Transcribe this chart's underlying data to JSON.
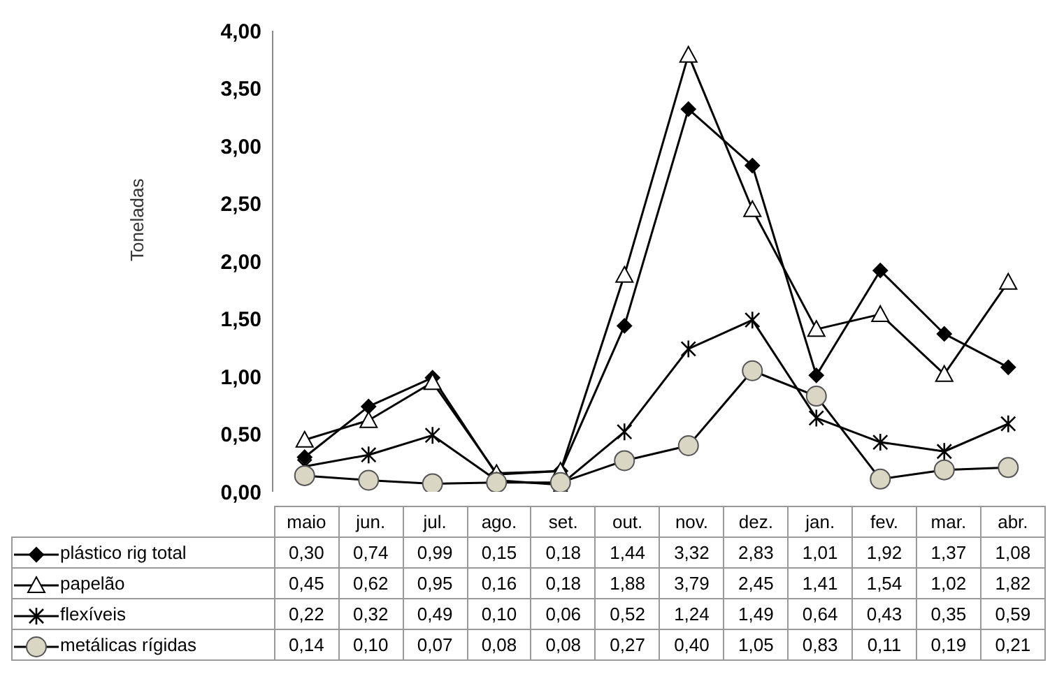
{
  "chart_data": {
    "type": "line",
    "ylabel": "Toneladas",
    "categories": [
      "maio",
      "jun.",
      "jul.",
      "ago.",
      "set.",
      "out.",
      "nov.",
      "dez.",
      "jan.",
      "fev.",
      "mar.",
      "abr."
    ],
    "series": [
      {
        "name": "plástico rig total",
        "color": "#000000",
        "marker": "diamond",
        "values": [
          0.3,
          0.74,
          0.99,
          0.15,
          0.18,
          1.44,
          3.32,
          2.83,
          1.01,
          1.92,
          1.37,
          1.08
        ],
        "value_labels": [
          "0,30",
          "0,74",
          "0,99",
          "0,15",
          "0,18",
          "1,44",
          "3,32",
          "2,83",
          "1,01",
          "1,92",
          "1,37",
          "1,08"
        ]
      },
      {
        "name": "papelão",
        "color": "#000000",
        "marker": "triangle",
        "values": [
          0.45,
          0.62,
          0.95,
          0.16,
          0.18,
          1.88,
          3.79,
          2.45,
          1.41,
          1.54,
          1.02,
          1.82
        ],
        "value_labels": [
          "0,45",
          "0,62",
          "0,95",
          "0,16",
          "0,18",
          "1,88",
          "3,79",
          "2,45",
          "1,41",
          "1,54",
          "1,02",
          "1,82"
        ]
      },
      {
        "name": "flexíveis",
        "color": "#000000",
        "marker": "cross",
        "values": [
          0.22,
          0.32,
          0.49,
          0.1,
          0.06,
          0.52,
          1.24,
          1.49,
          0.64,
          0.43,
          0.35,
          0.59
        ],
        "value_labels": [
          "0,22",
          "0,32",
          "0,49",
          "0,10",
          "0,06",
          "0,52",
          "1,24",
          "1,49",
          "0,64",
          "0,43",
          "0,35",
          "0,59"
        ]
      },
      {
        "name": "metálicas rígidas",
        "color": "#000000",
        "marker": "circle",
        "values": [
          0.14,
          0.1,
          0.07,
          0.08,
          0.08,
          0.27,
          0.4,
          1.05,
          0.83,
          0.11,
          0.19,
          0.21
        ],
        "value_labels": [
          "0,14",
          "0,10",
          "0,07",
          "0,08",
          "0,08",
          "0,27",
          "0,40",
          "1,05",
          "0,83",
          "0,11",
          "0,19",
          "0,21"
        ]
      }
    ],
    "ylim": [
      0,
      4
    ],
    "yticks": [
      {
        "value": 0,
        "label": "0,00"
      },
      {
        "value": 0.5,
        "label": "0,50"
      },
      {
        "value": 1,
        "label": "1,00"
      },
      {
        "value": 1.5,
        "label": "1,50"
      },
      {
        "value": 2,
        "label": "2,00"
      },
      {
        "value": 2.5,
        "label": "2,50"
      },
      {
        "value": 3,
        "label": "3,00"
      },
      {
        "value": 3.5,
        "label": "3,50"
      },
      {
        "value": 4,
        "label": "4,00"
      }
    ],
    "legend": "bottom",
    "line_style": "solid"
  }
}
